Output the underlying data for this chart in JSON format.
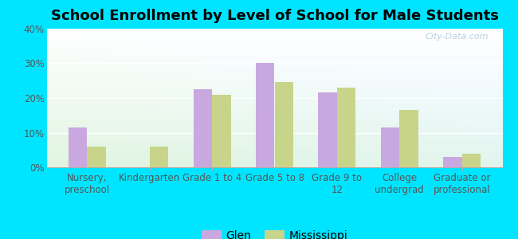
{
  "title": "School Enrollment by Level of School for Male Students",
  "categories": [
    "Nursery,\npreschool",
    "Kindergarten",
    "Grade 1 to 4",
    "Grade 5 to 8",
    "Grade 9 to\n12",
    "College\nundergrad",
    "Graduate or\nprofessional"
  ],
  "glen_values": [
    11.5,
    0,
    22.5,
    30.0,
    21.5,
    11.5,
    3.0
  ],
  "mississippi_values": [
    6.0,
    6.0,
    21.0,
    24.5,
    23.0,
    16.5,
    4.0
  ],
  "glen_color": "#c9a8e0",
  "mississippi_color": "#c8d48a",
  "background_color": "#00e5ff",
  "ylim": [
    0,
    40
  ],
  "yticks": [
    0,
    10,
    20,
    30,
    40
  ],
  "ytick_labels": [
    "0%",
    "10%",
    "20%",
    "30%",
    "40%"
  ],
  "bar_width": 0.3,
  "legend_labels": [
    "Glen",
    "Mississippi"
  ],
  "title_fontsize": 13,
  "tick_fontsize": 8.5,
  "legend_fontsize": 10,
  "watermark": "City-Data.com"
}
